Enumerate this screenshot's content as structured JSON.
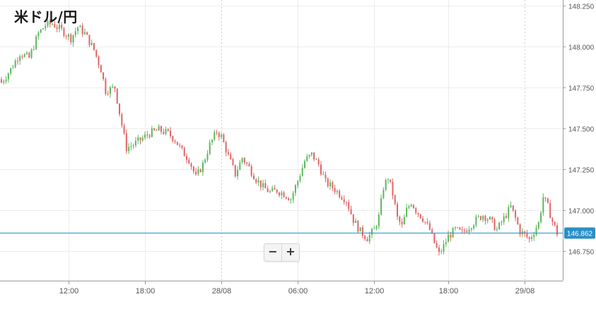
{
  "title": "米ドル/円",
  "zoom": {
    "minus_label": "−",
    "plus_label": "+"
  },
  "current_price": {
    "label": "146.862",
    "value": 146.862
  },
  "colors": {
    "up": "#5cb85c",
    "down": "#e06666",
    "grid": "#ececec",
    "axis": "#9a9a9a",
    "price_line": "#2a8fc6",
    "price_badge": "#2a8fc6"
  },
  "chart_data": {
    "type": "candlestick",
    "title": "米ドル/円",
    "y_axis": {
      "position": "right",
      "min": 146.625,
      "max": 148.275,
      "ticks": [
        146.75,
        147.0,
        147.25,
        147.5,
        147.75,
        148.0,
        148.25
      ],
      "tick_labels": [
        "146.750",
        "147.000",
        "147.250",
        "147.500",
        "147.750",
        "148.000",
        "148.250"
      ]
    },
    "x_axis": {
      "ticks": [
        {
          "label": "12:00",
          "bar": 29
        },
        {
          "label": "18:00",
          "bar": 62
        },
        {
          "label": "28/08",
          "bar": 95,
          "dotted": true
        },
        {
          "label": "06:00",
          "bar": 128
        },
        {
          "label": "12:00",
          "bar": 161
        },
        {
          "label": "18:00",
          "bar": 193
        },
        {
          "label": "29/08",
          "bar": 226,
          "dotted": true
        }
      ]
    },
    "grid": true,
    "series": [
      {
        "close_points": [
          [
            0,
            147.78
          ],
          [
            4,
            147.86
          ],
          [
            8,
            147.96
          ],
          [
            12,
            147.93
          ],
          [
            16,
            148.08
          ],
          [
            19,
            148.13
          ],
          [
            22,
            148.14
          ],
          [
            26,
            148.1
          ],
          [
            30,
            148.05
          ],
          [
            33,
            148.12
          ],
          [
            36,
            148.08
          ],
          [
            40,
            147.98
          ],
          [
            43,
            147.86
          ],
          [
            45,
            147.73
          ],
          [
            49,
            147.75
          ],
          [
            52,
            147.52
          ],
          [
            54,
            147.38
          ],
          [
            57,
            147.4
          ],
          [
            61,
            147.44
          ],
          [
            64,
            147.47
          ],
          [
            68,
            147.49
          ],
          [
            72,
            147.47
          ],
          [
            75,
            147.43
          ],
          [
            78,
            147.36
          ],
          [
            81,
            147.31
          ],
          [
            84,
            147.2
          ],
          [
            87,
            147.28
          ],
          [
            90,
            147.4
          ],
          [
            93,
            147.48
          ],
          [
            95,
            147.45
          ],
          [
            98,
            147.33
          ],
          [
            101,
            147.22
          ],
          [
            104,
            147.32
          ],
          [
            107,
            147.26
          ],
          [
            110,
            147.19
          ],
          [
            113,
            147.14
          ],
          [
            116,
            147.11
          ],
          [
            119,
            147.12
          ],
          [
            122,
            147.1
          ],
          [
            125,
            147.07
          ],
          [
            128,
            147.18
          ],
          [
            131,
            147.3
          ],
          [
            134,
            147.34
          ],
          [
            137,
            147.28
          ],
          [
            140,
            147.17
          ],
          [
            143,
            147.14
          ],
          [
            146,
            147.1
          ],
          [
            149,
            147.06
          ],
          [
            152,
            146.94
          ],
          [
            155,
            146.87
          ],
          [
            158,
            146.83
          ],
          [
            161,
            146.88
          ],
          [
            163,
            146.96
          ],
          [
            165,
            147.14
          ],
          [
            167,
            147.2
          ],
          [
            169,
            147.1
          ],
          [
            171,
            146.95
          ],
          [
            173,
            146.9
          ],
          [
            175,
            147.0
          ],
          [
            177,
            147.05
          ],
          [
            179,
            147.0
          ],
          [
            182,
            146.95
          ],
          [
            185,
            146.88
          ],
          [
            187,
            146.8
          ],
          [
            189,
            146.73
          ],
          [
            191,
            146.78
          ],
          [
            193,
            146.84
          ],
          [
            196,
            146.88
          ],
          [
            199,
            146.86
          ],
          [
            202,
            146.9
          ],
          [
            205,
            146.94
          ],
          [
            208,
            146.97
          ],
          [
            211,
            146.94
          ],
          [
            214,
            146.88
          ],
          [
            217,
            146.95
          ],
          [
            220,
            147.02
          ],
          [
            222,
            146.95
          ],
          [
            224,
            146.87
          ],
          [
            226,
            146.85
          ],
          [
            228,
            146.82
          ],
          [
            230,
            146.87
          ],
          [
            232,
            146.92
          ],
          [
            234,
            147.08
          ],
          [
            236,
            147.02
          ],
          [
            238,
            146.93
          ],
          [
            240,
            146.86
          ]
        ]
      }
    ],
    "bar_count": 241,
    "last_value": 146.862
  }
}
